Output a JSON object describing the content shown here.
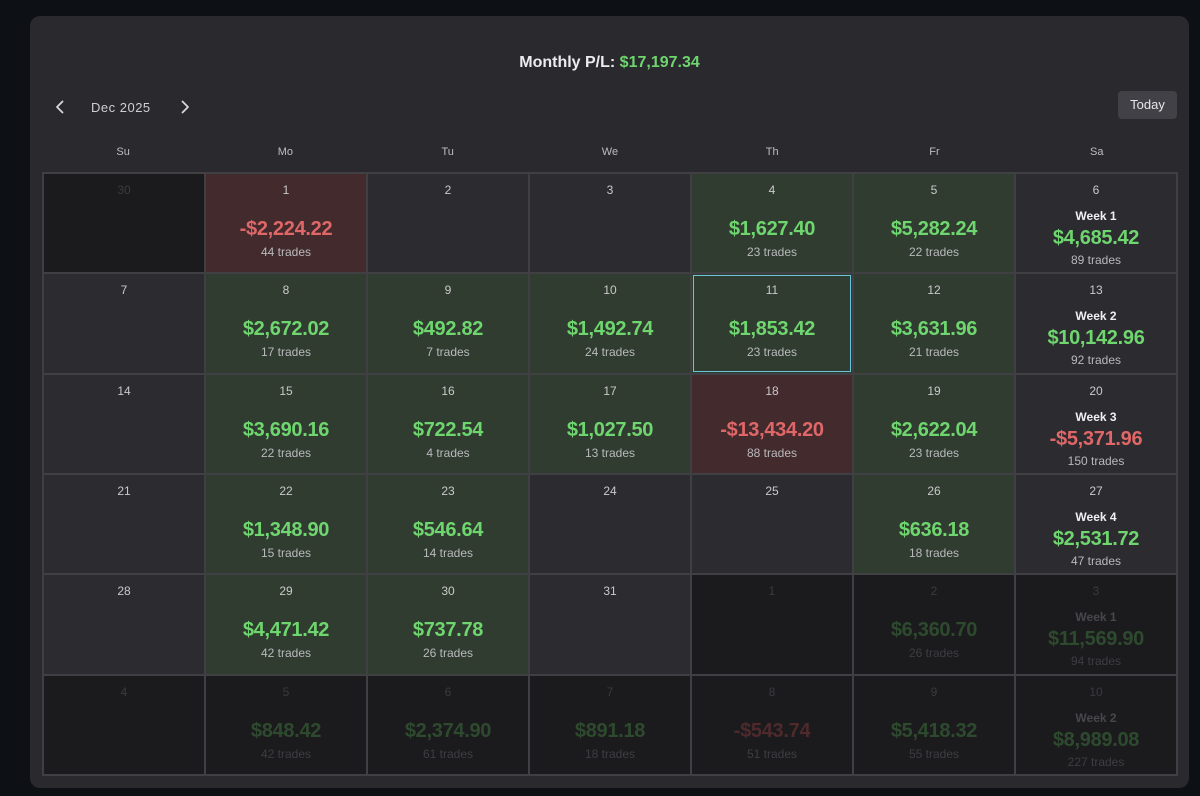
{
  "header": {
    "title_label": "Monthly P/L:",
    "title_value": "$17,197.34",
    "month": "Dec 2025",
    "prev_icon": "chevron-left-icon",
    "next_icon": "chevron-right-icon",
    "today_label": "Today"
  },
  "days_of_week": [
    "Su",
    "Mo",
    "Tu",
    "We",
    "Th",
    "Fr",
    "Sa"
  ],
  "weeks": [
    {
      "days": [
        {
          "day": "30",
          "out": true
        },
        {
          "day": "1",
          "pnl": "-$2,224.22",
          "trades": "44 trades",
          "status": "neg"
        },
        {
          "day": "2"
        },
        {
          "day": "3"
        },
        {
          "day": "4",
          "pnl": "$1,627.40",
          "trades": "23 trades",
          "status": "pos"
        },
        {
          "day": "5",
          "pnl": "$5,282.24",
          "trades": "22 trades",
          "status": "pos"
        }
      ],
      "sat": {
        "day": "6",
        "label": "Week 1",
        "pnl": "$4,685.42",
        "trades": "89 trades",
        "status": "pos"
      }
    },
    {
      "days": [
        {
          "day": "7"
        },
        {
          "day": "8",
          "pnl": "$2,672.02",
          "trades": "17 trades",
          "status": "pos"
        },
        {
          "day": "9",
          "pnl": "$492.82",
          "trades": "7 trades",
          "status": "pos"
        },
        {
          "day": "10",
          "pnl": "$1,492.74",
          "trades": "24 trades",
          "status": "pos"
        },
        {
          "day": "11",
          "pnl": "$1,853.42",
          "trades": "23 trades",
          "status": "pos",
          "selected": true
        },
        {
          "day": "12",
          "pnl": "$3,631.96",
          "trades": "21 trades",
          "status": "pos"
        }
      ],
      "sat": {
        "day": "13",
        "label": "Week 2",
        "pnl": "$10,142.96",
        "trades": "92 trades",
        "status": "pos"
      }
    },
    {
      "days": [
        {
          "day": "14"
        },
        {
          "day": "15",
          "pnl": "$3,690.16",
          "trades": "22 trades",
          "status": "pos"
        },
        {
          "day": "16",
          "pnl": "$722.54",
          "trades": "4 trades",
          "status": "pos"
        },
        {
          "day": "17",
          "pnl": "$1,027.50",
          "trades": "13 trades",
          "status": "pos"
        },
        {
          "day": "18",
          "pnl": "-$13,434.20",
          "trades": "88 trades",
          "status": "neg"
        },
        {
          "day": "19",
          "pnl": "$2,622.04",
          "trades": "23 trades",
          "status": "pos"
        }
      ],
      "sat": {
        "day": "20",
        "label": "Week 3",
        "pnl": "-$5,371.96",
        "trades": "150 trades",
        "status": "neg"
      }
    },
    {
      "days": [
        {
          "day": "21"
        },
        {
          "day": "22",
          "pnl": "$1,348.90",
          "trades": "15 trades",
          "status": "pos"
        },
        {
          "day": "23",
          "pnl": "$546.64",
          "trades": "14 trades",
          "status": "pos"
        },
        {
          "day": "24"
        },
        {
          "day": "25"
        },
        {
          "day": "26",
          "pnl": "$636.18",
          "trades": "18 trades",
          "status": "pos"
        }
      ],
      "sat": {
        "day": "27",
        "label": "Week 4",
        "pnl": "$2,531.72",
        "trades": "47 trades",
        "status": "pos"
      }
    },
    {
      "days": [
        {
          "day": "28"
        },
        {
          "day": "29",
          "pnl": "$4,471.42",
          "trades": "42 trades",
          "status": "pos"
        },
        {
          "day": "30",
          "pnl": "$737.78",
          "trades": "26 trades",
          "status": "pos"
        },
        {
          "day": "31"
        },
        {
          "day": "1",
          "out": true
        },
        {
          "day": "2",
          "pnl": "$6,360.70",
          "trades": "26 trades",
          "status": "pos",
          "out": true
        }
      ],
      "sat": {
        "day": "3",
        "label": "Week 1",
        "pnl": "$11,569.90",
        "trades": "94 trades",
        "status": "pos",
        "out": true
      }
    },
    {
      "days": [
        {
          "day": "4",
          "out": true
        },
        {
          "day": "5",
          "pnl": "$848.42",
          "trades": "42 trades",
          "status": "pos",
          "out": true
        },
        {
          "day": "6",
          "pnl": "$2,374.90",
          "trades": "61 trades",
          "status": "pos",
          "out": true
        },
        {
          "day": "7",
          "pnl": "$891.18",
          "trades": "18 trades",
          "status": "pos",
          "out": true
        },
        {
          "day": "8",
          "pnl": "-$543.74",
          "trades": "51 trades",
          "status": "neg",
          "out": true
        },
        {
          "day": "9",
          "pnl": "$5,418.32",
          "trades": "55 trades",
          "status": "pos",
          "out": true
        }
      ],
      "sat": {
        "day": "10",
        "label": "Week 2",
        "pnl": "$8,989.08",
        "trades": "227 trades",
        "status": "pos",
        "out": true
      }
    }
  ]
}
